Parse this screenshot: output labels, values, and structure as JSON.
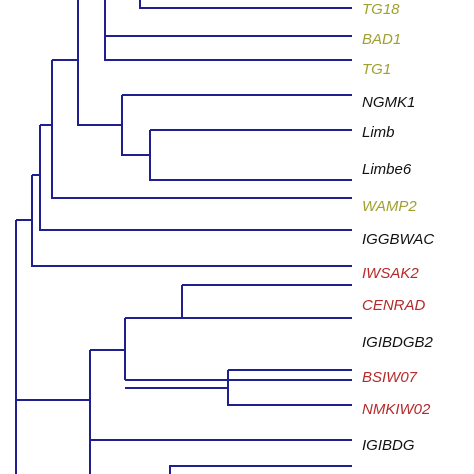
{
  "leaves": [
    {
      "label": "TG18",
      "color": "#a0a030"
    },
    {
      "label": "BAD1",
      "color": "#a0a030"
    },
    {
      "label": "TG1",
      "color": "#a0a030"
    },
    {
      "label": "NGMK1",
      "color": "#111111"
    },
    {
      "label": "Limb",
      "color": "#111111"
    },
    {
      "label": "Limbe6",
      "color": "#111111"
    },
    {
      "label": "WAMP2",
      "color": "#a0a030"
    },
    {
      "label": "IGGBWAC",
      "color": "#111111"
    },
    {
      "label": "IWSAK2",
      "color": "#b52a2a"
    },
    {
      "label": "CENRAD",
      "color": "#b52a2a"
    },
    {
      "label": "IGIBDGB2",
      "color": "#111111"
    },
    {
      "label": "BSIW07",
      "color": "#b52a2a"
    },
    {
      "label": "NMKIW02",
      "color": "#b52a2a"
    },
    {
      "label": "IGIBDG",
      "color": "#111111"
    }
  ]
}
